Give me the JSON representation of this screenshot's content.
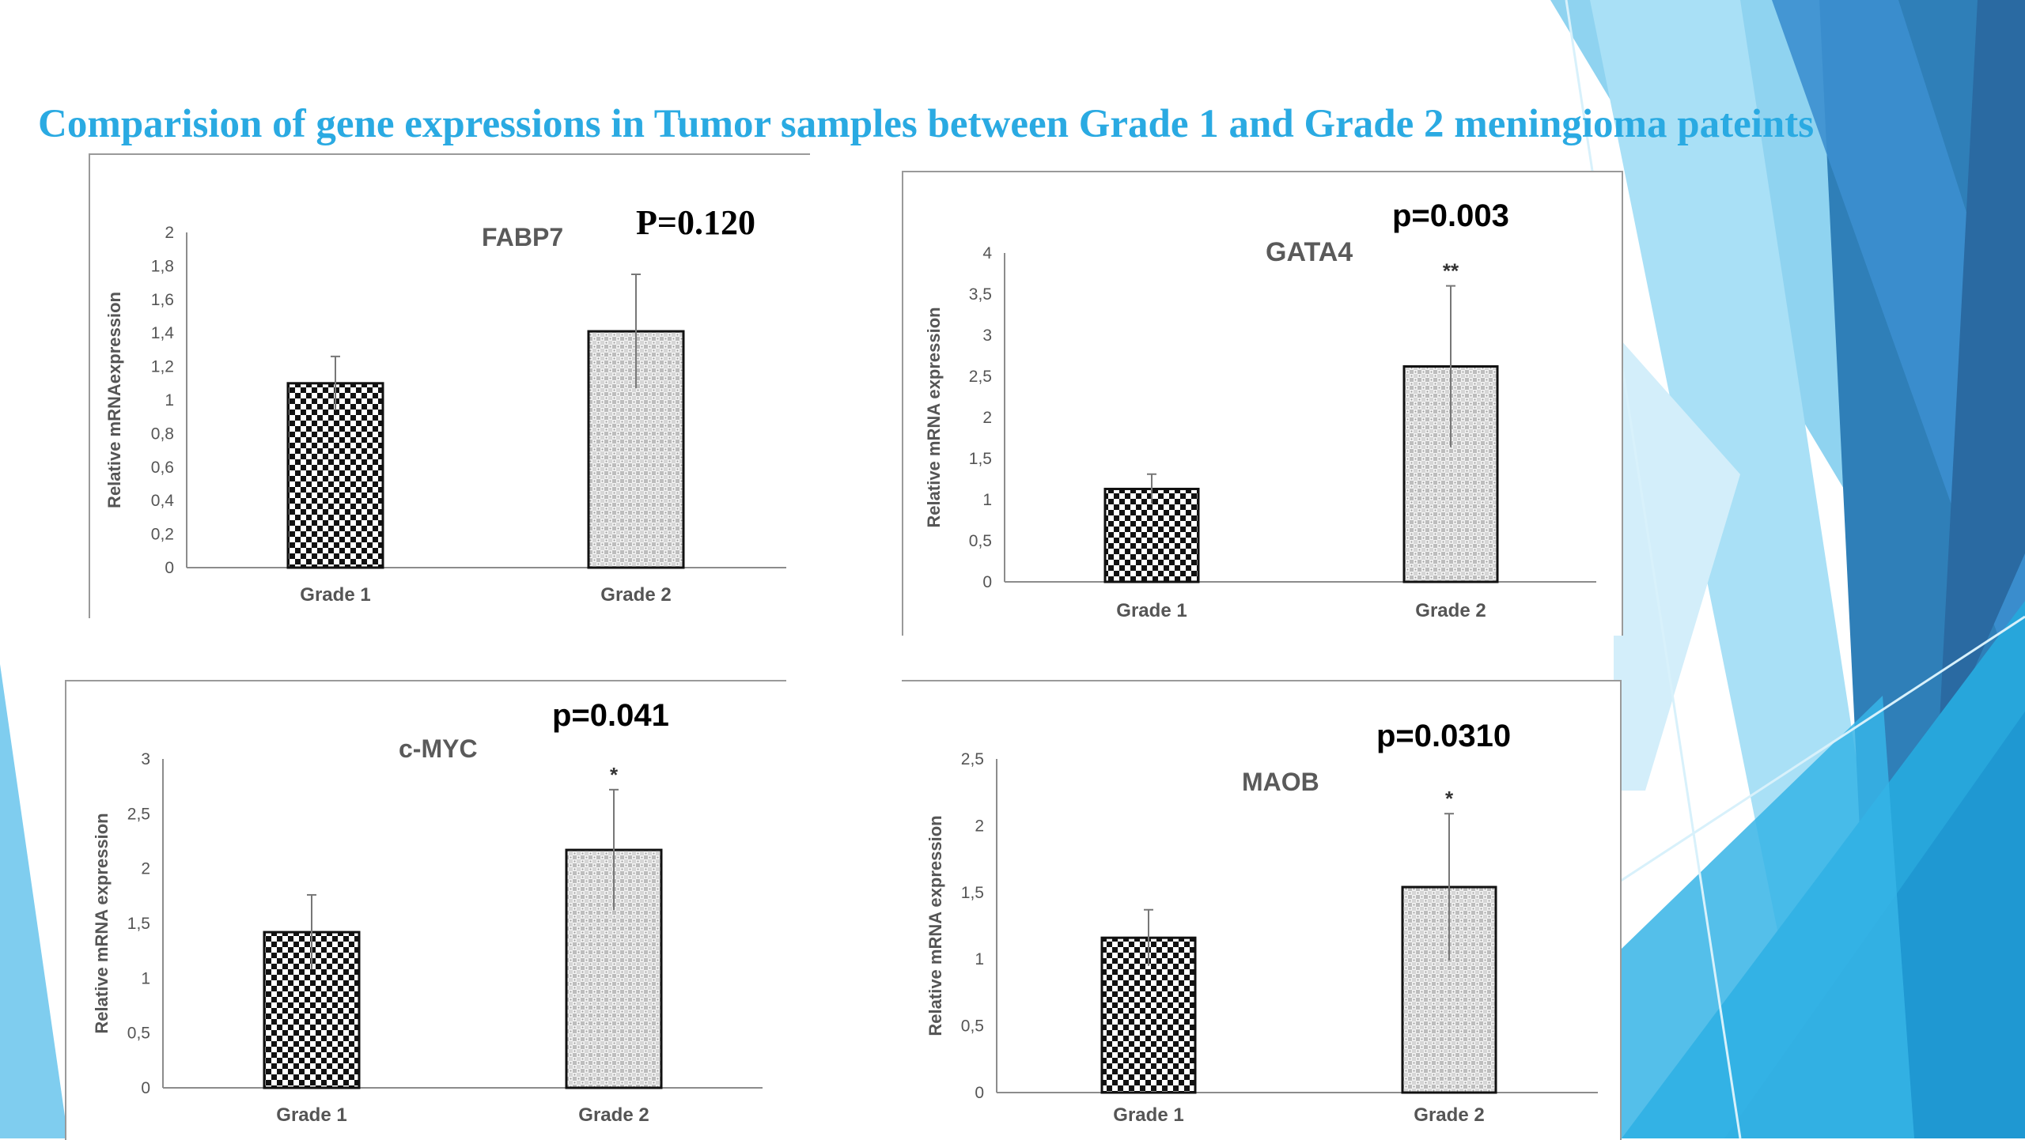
{
  "slide": {
    "title": "Comparision of gene expressions in Tumor samples  between Grade 1 and Grade 2 meningioma pateints",
    "title_color": "#2aaae2"
  },
  "chart_data": [
    {
      "type": "bar",
      "title": "FABP7",
      "p_value": "P=0.120",
      "categories": [
        "Grade 1",
        "Grade 2"
      ],
      "values": [
        1.1,
        1.41
      ],
      "errors": [
        0.16,
        0.34
      ],
      "significance": [
        "",
        ""
      ],
      "ylabel": "Relative mRNAexpression",
      "ylim": [
        0,
        2
      ],
      "yticks": [
        "0",
        "0,2",
        "0,4",
        "0,6",
        "0,8",
        "1",
        "1,2",
        "1,4",
        "1,6",
        "1,8",
        "2"
      ]
    },
    {
      "type": "bar",
      "title": "GATA4",
      "p_value": "p=0.003",
      "categories": [
        "Grade 1",
        "Grade 2"
      ],
      "values": [
        1.13,
        2.62
      ],
      "errors": [
        0.18,
        0.98
      ],
      "significance": [
        "",
        "**"
      ],
      "ylabel": "Relative mRNA expression",
      "ylim": [
        0,
        4
      ],
      "yticks": [
        "0",
        "0,5",
        "1",
        "1,5",
        "2",
        "2,5",
        "3",
        "3,5",
        "4"
      ]
    },
    {
      "type": "bar",
      "title": "c-MYC",
      "p_value": "p=0.041",
      "categories": [
        "Grade 1",
        "Grade 2"
      ],
      "values": [
        1.42,
        2.17
      ],
      "errors": [
        0.34,
        0.55
      ],
      "significance": [
        "",
        "*"
      ],
      "ylabel": "Relative mRNA expression",
      "ylim": [
        0,
        3
      ],
      "yticks": [
        "0",
        "0,5",
        "1",
        "1,5",
        "2",
        "2,5",
        "3"
      ]
    },
    {
      "type": "bar",
      "title": "MAOB",
      "p_value": "p=0.0310",
      "categories": [
        "Grade 1",
        "Grade 2"
      ],
      "values": [
        1.16,
        1.54
      ],
      "errors": [
        0.21,
        0.55
      ],
      "significance": [
        "",
        "*"
      ],
      "ylabel": "Relative mRNA expression",
      "ylim": [
        0,
        2.5
      ],
      "yticks": [
        "0",
        "0,5",
        "1",
        "1,5",
        "2",
        "2,5"
      ]
    }
  ]
}
